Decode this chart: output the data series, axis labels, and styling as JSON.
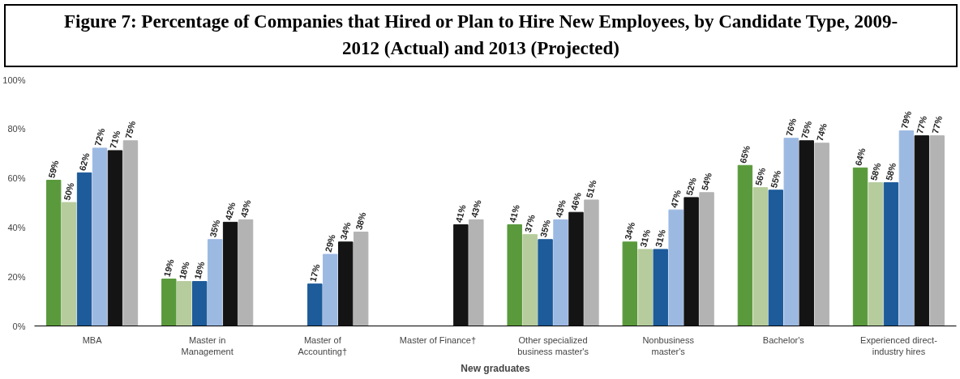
{
  "chart_data": {
    "type": "bar",
    "title": "Figure 7: Percentage of Companies that Hired or Plan to Hire New Employees, by Candidate Type, 2009-2012 (Actual) and 2013 (Projected)",
    "categories": [
      "MBA",
      "Master in\nManagement",
      "Master of\nAccounting†",
      "Master of Finance†",
      "Other specialized\nbusiness master's",
      "Nonbusiness\nmaster's",
      "Bachelor's",
      "Experienced direct-\nindustry hires"
    ],
    "series": [
      {
        "color": "#5a9a3c",
        "values": [
          59,
          19,
          null,
          null,
          41,
          34,
          65,
          64
        ],
        "value_labels": [
          "59%",
          "19%",
          null,
          null,
          "41%",
          "34%",
          "65%",
          "64%"
        ]
      },
      {
        "color": "#b6cc9c",
        "values": [
          50,
          18,
          null,
          null,
          37,
          31,
          56,
          58
        ],
        "value_labels": [
          "50%",
          "18%",
          null,
          null,
          "37%",
          "31%",
          "56%",
          "58%"
        ]
      },
      {
        "color": "#1d5b9a",
        "values": [
          62,
          18,
          17,
          null,
          35,
          31,
          55,
          58
        ],
        "value_labels": [
          "62%",
          "18%",
          "17%",
          null,
          "35%",
          "31%",
          "55%",
          "58%"
        ]
      },
      {
        "color": "#9cb9e2",
        "values": [
          72,
          35,
          29,
          null,
          43,
          47,
          76,
          79
        ],
        "value_labels": [
          "72%",
          "35%",
          "29%",
          null,
          "43%",
          "47%",
          "76%",
          "79%"
        ]
      },
      {
        "color": "#141414",
        "values": [
          71,
          42,
          34,
          41,
          46,
          52,
          75,
          77
        ],
        "value_labels": [
          "71%",
          "42%",
          "34%",
          "41%",
          "46%",
          "52%",
          "75%",
          "77%"
        ]
      },
      {
        "color": "#b3b3b3",
        "values": [
          75,
          43,
          38,
          43,
          51,
          54,
          74,
          77
        ],
        "value_labels": [
          "75%",
          "43%",
          "38%",
          "43%",
          "51%",
          "54%",
          "74%",
          "77%"
        ]
      }
    ],
    "xlabel": "New graduates",
    "ylim": [
      0,
      100
    ],
    "yticks": [
      {
        "value": 0,
        "label": "0%"
      },
      {
        "value": 20,
        "label": "20%"
      },
      {
        "value": 40,
        "label": "40%"
      },
      {
        "value": 60,
        "label": "60%"
      },
      {
        "value": 80,
        "label": "80%"
      },
      {
        "value": 100,
        "label": "100%"
      }
    ],
    "grid": false
  }
}
